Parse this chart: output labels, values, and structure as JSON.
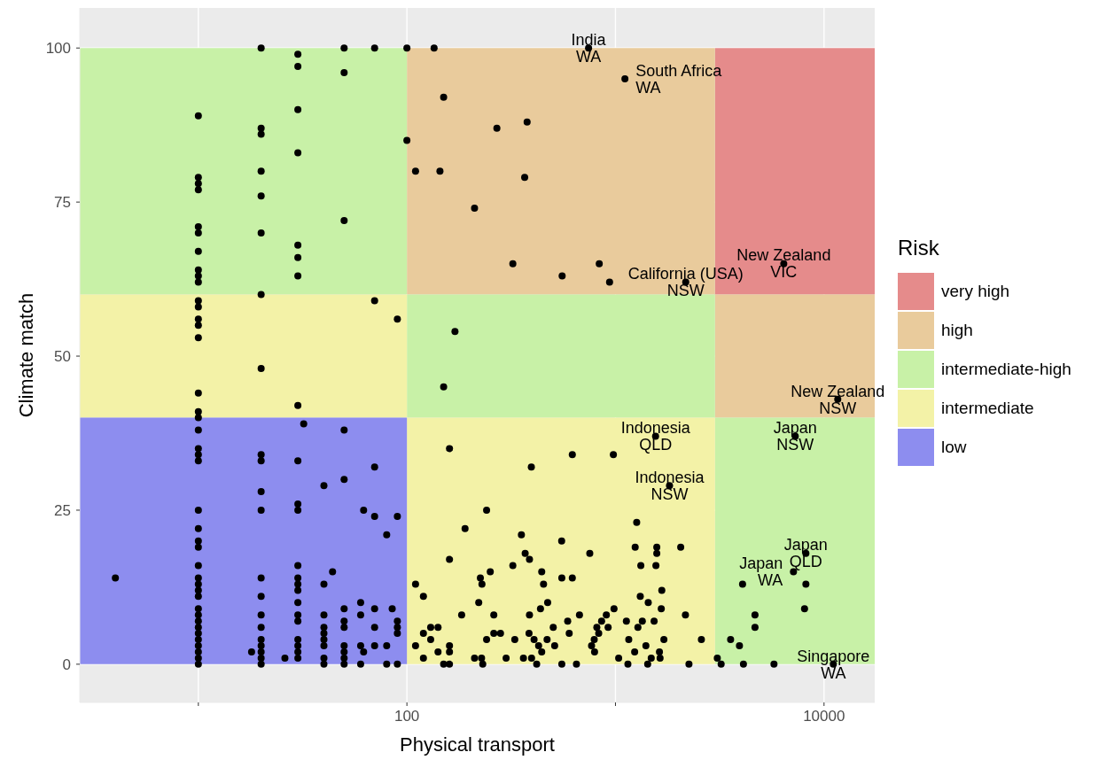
{
  "chart_data": {
    "type": "scatter",
    "xlabel": "Physical transport",
    "ylabel": "Climate match",
    "legend_title": "Risk",
    "legend": "right",
    "log": "x",
    "grid": true,
    "xlim": [
      2.7,
      17500
    ],
    "xticks": [
      {
        "value": 10,
        "label": null
      },
      100,
      {
        "value": 1000,
        "label": null
      },
      10000
    ],
    "ylim": [
      -6.2,
      106.5
    ],
    "yticks": [
      0,
      25,
      50,
      75,
      100
    ],
    "series": [
      {
        "type": "area",
        "name": "very high",
        "color": "#e58b8b",
        "x": [
          3000,
          17500
        ],
        "values": [
          null,
          null
        ],
        "upper": [
          100,
          100
        ],
        "lower": [
          60,
          60
        ]
      },
      {
        "type": "area",
        "name": "high",
        "color": "#e9cb9c",
        "x": [
          100,
          3000,
          3000,
          17500
        ],
        "values": [
          null,
          null,
          null,
          null
        ],
        "upper": [
          100,
          100,
          60,
          60
        ],
        "lower": [
          60,
          60,
          40,
          40
        ]
      },
      {
        "type": "area",
        "name": "intermediate-high",
        "color": "#c8f1a7",
        "x": [
          2.7,
          100,
          100,
          3000,
          3000,
          17500
        ],
        "values": [
          null,
          null,
          null,
          null,
          null,
          null
        ],
        "upper": [
          100,
          100,
          60,
          60,
          40,
          40
        ],
        "lower": [
          60,
          60,
          40,
          40,
          0,
          0
        ]
      },
      {
        "type": "area",
        "name": "intermediate",
        "color": "#f3f2a7",
        "x": [
          2.7,
          100,
          100,
          3000
        ],
        "values": [
          null,
          null,
          null,
          null
        ],
        "upper": [
          60,
          60,
          40,
          40
        ],
        "lower": [
          40,
          40,
          0,
          0
        ]
      },
      {
        "type": "area",
        "name": "low",
        "color": "#8d8def",
        "x": [
          2.7,
          100
        ],
        "values": [
          null,
          null
        ],
        "upper": [
          40,
          40
        ],
        "lower": [
          0,
          0
        ]
      },
      {
        "color": "#000000",
        "marker": "circle",
        "x": [
          4,
          10,
          10,
          10,
          10,
          10,
          10,
          10,
          10,
          10,
          10,
          10,
          10,
          10,
          10,
          10,
          10,
          10,
          10,
          10,
          10,
          10,
          10,
          10,
          10,
          10,
          10,
          10,
          10,
          10,
          10,
          10,
          10,
          10,
          10,
          10,
          10,
          10,
          10,
          10,
          10,
          10,
          18,
          20,
          20,
          20,
          20,
          20,
          20,
          20,
          20,
          20,
          20,
          20,
          20,
          20,
          20,
          20,
          20,
          20,
          20,
          20,
          20,
          20,
          26,
          30,
          30,
          30,
          30,
          30,
          30,
          30,
          30,
          30,
          30,
          30,
          30,
          30,
          30,
          30,
          30,
          30,
          30,
          30,
          30,
          30,
          30,
          32,
          40,
          40,
          40,
          40,
          40,
          40,
          40,
          40,
          40,
          44,
          50,
          50,
          50,
          50,
          50,
          50,
          50,
          50,
          50,
          50,
          50,
          50,
          60,
          60,
          60,
          60,
          62,
          62,
          70,
          70,
          70,
          70,
          70,
          70,
          70,
          80,
          80,
          80,
          85,
          90,
          90,
          90,
          90,
          90,
          90,
          100,
          100,
          135,
          150,
          270,
          377,
          110,
          144,
          367,
          211,
          322,
          836,
          555,
          937,
          2172,
          743,
          1110,
          170,
          150,
          160,
          621,
          977,
          395,
          1557,
          1816,
          241,
          190,
          354,
          552,
          1264,
          1243,
          1578,
          1578,
          2055,
          753,
          160,
          369,
          387,
          322,
          1323,
          1563,
          443,
          251,
          225,
          229,
          452,
          553,
          621,
          110,
          120,
          1668,
          1315,
          1436,
          221,
          473,
          437,
          984,
          1658,
          183,
          261,
          387,
          672,
          904,
          2165,
          590,
          858,
          1128,
          1345,
          1532,
          130,
          141,
          503,
          814,
          922,
          1281,
          120,
          261,
          281,
          385,
          600,
          831,
          130,
          241,
          329,
          407,
          470,
          791,
          1158,
          1707,
          2582,
          110,
          160,
          428,
          511,
          768,
          1399,
          141,
          160,
          443,
          794,
          1236,
          1625,
          120,
          211,
          228,
          299,
          362,
          396,
          1036,
          1484,
          1636,
          3078,
          150,
          160,
          231,
          419,
          553,
          650,
          1147,
          1427,
          2251,
          3211,
          6411,
          11636,
          7278,
          8185,
          7137,
          8185,
          8064,
          4068,
          4666,
          4666,
          3565,
          3931,
          4108,
          5755,
          11083
        ],
        "values": [
          14,
          0,
          1,
          2,
          3,
          4,
          5,
          6,
          7,
          8,
          9,
          11,
          12,
          13,
          14,
          16,
          19,
          20,
          22,
          25,
          33,
          34,
          35,
          38,
          40,
          41,
          44,
          53,
          55,
          56,
          58,
          59,
          62,
          63,
          64,
          67,
          70,
          71,
          77,
          78,
          79,
          89,
          2,
          0,
          1,
          2,
          3,
          4,
          6,
          8,
          11,
          14,
          25,
          28,
          33,
          34,
          48,
          60,
          70,
          76,
          80,
          86,
          87,
          100,
          1,
          1,
          2,
          3,
          4,
          7,
          8,
          10,
          12,
          13,
          14,
          16,
          25,
          26,
          33,
          42,
          63,
          66,
          68,
          83,
          90,
          97,
          99,
          39,
          0,
          1,
          3,
          4,
          5,
          6,
          8,
          13,
          29,
          15,
          0,
          1,
          2,
          3,
          6,
          7,
          9,
          30,
          38,
          72,
          96,
          100,
          0,
          3,
          8,
          10,
          2,
          25,
          3,
          6,
          9,
          24,
          32,
          59,
          100,
          0,
          3,
          21,
          9,
          0,
          5,
          6,
          7,
          24,
          56,
          85,
          100,
          100,
          92,
          87,
          88,
          80,
          80,
          79,
          74,
          65,
          65,
          63,
          62,
          62,
          100,
          95,
          54,
          45,
          35,
          34,
          34,
          32,
          37,
          29,
          25,
          22,
          21,
          20,
          23,
          19,
          19,
          18,
          19,
          18,
          17,
          18,
          17,
          16,
          16,
          16,
          15,
          15,
          14,
          13,
          13,
          14,
          14,
          13,
          11,
          12,
          11,
          10,
          10,
          10,
          9,
          9,
          9,
          8,
          8,
          8,
          8,
          8,
          8,
          7,
          7,
          7,
          7,
          7,
          6,
          6,
          6,
          6,
          6,
          6,
          5,
          5,
          5,
          5,
          5,
          5,
          4,
          4,
          4,
          4,
          4,
          4,
          4,
          4,
          4,
          3,
          3,
          3,
          3,
          3,
          3,
          2,
          2,
          2,
          2,
          2,
          2,
          1,
          1,
          1,
          1,
          1,
          1,
          1,
          1,
          1,
          1,
          0,
          0,
          0,
          0,
          0,
          0,
          0,
          0,
          0,
          0,
          65,
          43,
          37,
          18,
          15,
          13,
          9,
          13,
          8,
          6,
          4,
          3,
          0,
          0,
          0
        ]
      }
    ],
    "annotations": [
      {
        "text": "India\nWA",
        "x": 743,
        "y": 100
      },
      {
        "text": "South Africa\nWA",
        "x": 1110,
        "y": 95
      },
      {
        "text": "California (USA)\nNSW",
        "x": 2172,
        "y": 62
      },
      {
        "text": "New Zealand\nVIC",
        "x": 6411,
        "y": 65
      },
      {
        "text": "New Zealand\nNSW",
        "x": 11636,
        "y": 43
      },
      {
        "text": "Japan\nNSW",
        "x": 7278,
        "y": 37
      },
      {
        "text": "Indonesia\nQLD",
        "x": 1557,
        "y": 37
      },
      {
        "text": "Indonesia\nNSW",
        "x": 1816,
        "y": 29
      },
      {
        "text": "Japan\nQLD",
        "x": 8185,
        "y": 18
      },
      {
        "text": "Japan\nWA",
        "x": 7137,
        "y": 15
      },
      {
        "text": "Singapore\nWA",
        "x": 11083,
        "y": 0
      }
    ]
  }
}
